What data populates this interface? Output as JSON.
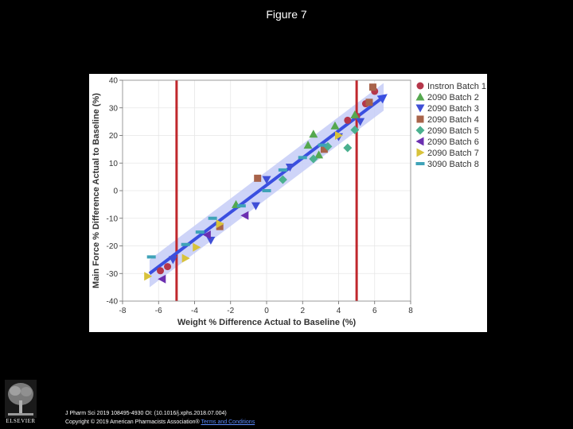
{
  "slide": {
    "title": "Figure 7"
  },
  "footer": {
    "line1": "J Pharm Sci 2019 108495-4930 OI: (10.1016/j.xphs.2018.07.004)",
    "line2_prefix": "Copyright © 2019 American Pharmacists Association® ",
    "line2_link": "Terms and Conditions"
  },
  "logo": {
    "text": "ELSEVIER"
  },
  "colors": {
    "ref_line": "#c0282d",
    "fit_line": "#3a4fe0",
    "band": "#c6ccf7",
    "grid": "#e6e6e6"
  },
  "chart_data": {
    "type": "scatter",
    "title": "",
    "xlabel": "Weight % Difference Actual to Baseline (%)",
    "ylabel": "Main Force % Difference Actual to Baseline (%)",
    "xlim": [
      -8,
      8
    ],
    "ylim": [
      -40,
      40
    ],
    "xticks": [
      "-8",
      "-6",
      "-4",
      "-2",
      "0",
      "2",
      "4",
      "6",
      "8"
    ],
    "yticks": [
      "-40",
      "-30",
      "-20",
      "-10",
      "0",
      "10",
      "20",
      "30",
      "40"
    ],
    "grid": true,
    "legend_position": "right",
    "reference_lines_x": [
      -5,
      5
    ],
    "fit": {
      "x1": -6.5,
      "y1": -30,
      "x2": 6.5,
      "y2": 34,
      "band": 5
    },
    "series": [
      {
        "name": "Instron Batch 1",
        "marker": "circle",
        "color": "#b5364a",
        "points": [
          [
            -5.9,
            -29
          ],
          [
            -5.5,
            -27.5
          ],
          [
            4.5,
            25.5
          ],
          [
            5.0,
            27
          ],
          [
            5.5,
            31.5
          ],
          [
            6.0,
            36
          ]
        ]
      },
      {
        "name": "2090 Batch 2",
        "marker": "triangle-up",
        "color": "#55a84f",
        "points": [
          [
            2.6,
            20.5
          ],
          [
            2.3,
            16.5
          ],
          [
            3.8,
            23.5
          ],
          [
            4.9,
            27.5
          ],
          [
            2.9,
            13
          ],
          [
            -1.7,
            -5
          ]
        ]
      },
      {
        "name": "2090 Batch 3",
        "marker": "triangle-down",
        "color": "#3f4fd6",
        "points": [
          [
            -5.2,
            -25
          ],
          [
            -3.1,
            -18
          ],
          [
            -0.6,
            -5.5
          ],
          [
            0.0,
            4
          ],
          [
            1.3,
            8.5
          ],
          [
            4.0,
            19.5
          ],
          [
            5.2,
            25
          ]
        ]
      },
      {
        "name": "2090 Batch 4",
        "marker": "square",
        "color": "#a8634a",
        "points": [
          [
            -0.5,
            4.5
          ],
          [
            -2.6,
            -13
          ],
          [
            3.2,
            15
          ],
          [
            5.7,
            32
          ],
          [
            5.9,
            37.5
          ]
        ]
      },
      {
        "name": "2090 Batch 5",
        "marker": "diamond",
        "color": "#4bb08f",
        "points": [
          [
            0.9,
            4
          ],
          [
            2.6,
            11.5
          ],
          [
            4.5,
            15.5
          ],
          [
            4.9,
            22
          ],
          [
            3.4,
            16
          ]
        ]
      },
      {
        "name": "2090 Batch 6",
        "marker": "triangle-left",
        "color": "#6b2fb0",
        "points": [
          [
            -5.8,
            -32
          ],
          [
            -3.3,
            -16
          ],
          [
            -1.2,
            -9
          ]
        ]
      },
      {
        "name": "2090 Batch 7",
        "marker": "triangle-right",
        "color": "#d8c23a",
        "points": [
          [
            -6.6,
            -31
          ],
          [
            -4.5,
            -24.5
          ],
          [
            -3.9,
            -20.5
          ],
          [
            -2.6,
            -12
          ],
          [
            4.0,
            20
          ]
        ]
      },
      {
        "name": "3090 Batch 8",
        "marker": "bar",
        "color": "#3fa3b8",
        "points": [
          [
            -6.4,
            -24
          ],
          [
            -4.5,
            -19.5
          ],
          [
            -3.7,
            -15
          ],
          [
            -3.0,
            -10
          ],
          [
            -1.4,
            -5.5
          ],
          [
            0.0,
            0
          ],
          [
            0.9,
            7.5
          ],
          [
            2.0,
            12
          ],
          [
            3.1,
            16.5
          ]
        ]
      }
    ]
  }
}
